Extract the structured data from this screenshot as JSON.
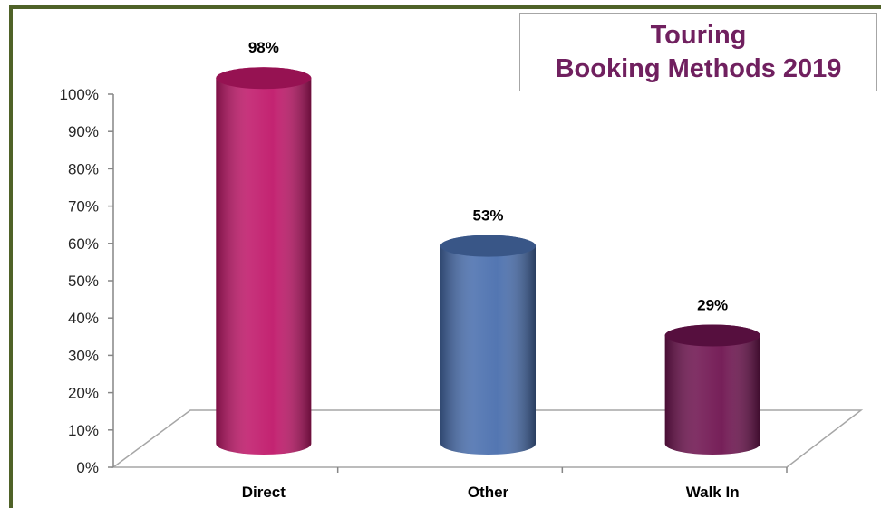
{
  "chart_data": {
    "type": "bar",
    "title": "Touring\nBooking Methods 2019",
    "categories": [
      "Direct",
      "Other",
      "Walk In"
    ],
    "values": [
      98,
      53,
      29
    ],
    "value_labels": [
      "98%",
      "53%",
      "29%"
    ],
    "colors": [
      "#c0186a",
      "#4a6fae",
      "#6f1450"
    ],
    "ylim": [
      0,
      100
    ],
    "yticks": [
      {
        "value": 0,
        "label": "0%"
      },
      {
        "value": 10,
        "label": "10%"
      },
      {
        "value": 20,
        "label": "20%"
      },
      {
        "value": 30,
        "label": "30%"
      },
      {
        "value": 40,
        "label": "40%"
      },
      {
        "value": 50,
        "label": "50%"
      },
      {
        "value": 60,
        "label": "60%"
      },
      {
        "value": 70,
        "label": "70%"
      },
      {
        "value": 80,
        "label": "80%"
      },
      {
        "value": 90,
        "label": "90%"
      },
      {
        "value": 100,
        "label": "100%"
      }
    ],
    "grid": false
  }
}
